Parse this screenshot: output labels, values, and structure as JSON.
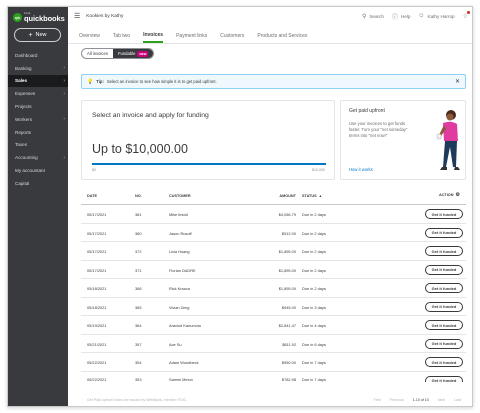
{
  "brand": {
    "small": "intuit",
    "name": "quickbooks"
  },
  "sidebar": {
    "new_label": "New",
    "items": [
      {
        "label": "Dashboard",
        "chevron": false,
        "active": false
      },
      {
        "label": "Banking",
        "chevron": true,
        "active": false
      },
      {
        "label": "Sales",
        "chevron": true,
        "active": true
      },
      {
        "label": "Expenses",
        "chevron": true,
        "active": false
      },
      {
        "label": "Projects",
        "chevron": false,
        "active": false
      },
      {
        "label": "Workers",
        "chevron": true,
        "active": false
      },
      {
        "label": "Reports",
        "chevron": false,
        "active": false
      },
      {
        "label": "Taxes",
        "chevron": false,
        "active": false
      },
      {
        "label": "Accounting",
        "chevron": true,
        "active": false
      },
      {
        "label": "My accountant",
        "chevron": false,
        "active": false
      },
      {
        "label": "Capital",
        "chevron": false,
        "active": false
      }
    ]
  },
  "header": {
    "company": "Kookies by Kathy",
    "search_label": "Search",
    "help_label": "Help",
    "user_label": "Kathy Harrop"
  },
  "tabs": [
    "Overview",
    "Tab two",
    "Invoices",
    "Payment links",
    "Customers",
    "Products and Services"
  ],
  "active_tab": "Invoices",
  "segmented": {
    "all": "All invoices",
    "fundable": "Fundable",
    "badge": "NEW"
  },
  "tip": {
    "prefix": "Tip:",
    "text": "Select an invoice to see how simple it is to get paid upfront."
  },
  "funding": {
    "title": "Select an invoice and apply for funding",
    "amount": "Up to $10,000.00",
    "min": "$0",
    "max": "$10,000",
    "progress": 1.0
  },
  "get_paid": {
    "title": "Get paid upfront",
    "body": "Use your invoices to get funds faster. Turn your \"net someday\" terms into \"net now!\"",
    "link": "How it works"
  },
  "table": {
    "headers": {
      "date": "DATE",
      "no": "NO.",
      "customer": "CUSTOMER",
      "amount": "AMOUNT",
      "status": "STATUS",
      "action": "ACTION"
    },
    "button_label": "Get it funded",
    "rows": [
      {
        "date": "05/17/2021",
        "no": "381",
        "customer": "Mike Ilnicki",
        "amount": "$4,056.79",
        "status": "Due in 2 days"
      },
      {
        "date": "05/17/2021",
        "no": "380",
        "customer": "Jason Rusoff",
        "amount": "$912.00",
        "status": "Due in 2 days"
      },
      {
        "date": "05/17/2021",
        "no": "372",
        "customer": "Livia Huang",
        "amount": "$1,895.00",
        "status": "Due in 2 days"
      },
      {
        "date": "05/17/2021",
        "no": "371",
        "customer": "Florian DADRE",
        "amount": "$1,895.00",
        "status": "Due in 2 days"
      },
      {
        "date": "05/18/2021",
        "no": "368",
        "customer": "Rick Krazca",
        "amount": "$1,895.00",
        "status": "Due in 2 days"
      },
      {
        "date": "05/18/2021",
        "no": "365",
        "customer": "Vivian Zeng",
        "amount": "$945.00",
        "status": "Due in 3 days"
      },
      {
        "date": "05/19/2021",
        "no": "364",
        "customer": "Aravind Kanumuru",
        "amount": "$2,841.47",
        "status": "Due in 4 days"
      },
      {
        "date": "05/21/2021",
        "no": "357",
        "customer": "Ace Su",
        "amount": "$811.92",
        "status": "Due in 6 days"
      },
      {
        "date": "05/22/2021",
        "no": "354",
        "customer": "Adam Woodbeck",
        "amount": "$950.00",
        "status": "Due in 7 days"
      },
      {
        "date": "05/22/2021",
        "no": "353",
        "customer": "Sammi Melon",
        "amount": "$782.98",
        "status": "Due in 7 days"
      }
    ]
  },
  "footer": {
    "note": "Get Paid upfront loans are issued by WebBank, member FDIC.",
    "first": "First",
    "previous": "Previous",
    "range": "1-10 of 10",
    "next": "Next",
    "last": "Last"
  },
  "colors": {
    "sidebar": "#393a3d",
    "brand_green": "#2ca01c",
    "link_blue": "#0077c5",
    "badge_pink": "#c9007a"
  }
}
